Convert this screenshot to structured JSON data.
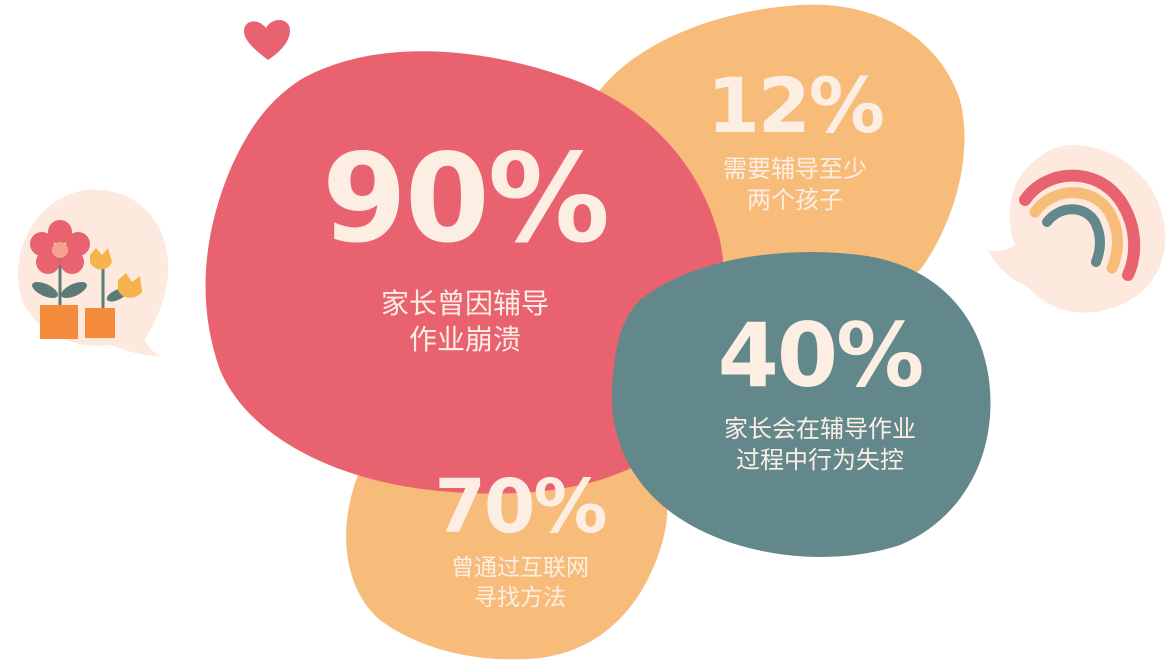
{
  "stats": {
    "s90": {
      "value": "90%",
      "lines": [
        "家长曾因辅导",
        "作业崩溃"
      ]
    },
    "s12": {
      "value": "12%",
      "lines": [
        "需要辅导至少",
        "两个孩子"
      ]
    },
    "s40": {
      "value": "40%",
      "lines": [
        "家长会在辅导作业",
        "过程中行为失控"
      ]
    },
    "s70": {
      "value": "70%",
      "lines": [
        "曾通过互联网",
        "寻找方法"
      ]
    }
  },
  "colors": {
    "pink": "#e8636f",
    "orange": "#f7bc7a",
    "teal": "#62888b",
    "cream": "#fdeee4",
    "bubble": "#fde9de"
  },
  "icons": [
    "heart-icon",
    "flower-pots-icon",
    "rainbow-icon"
  ]
}
